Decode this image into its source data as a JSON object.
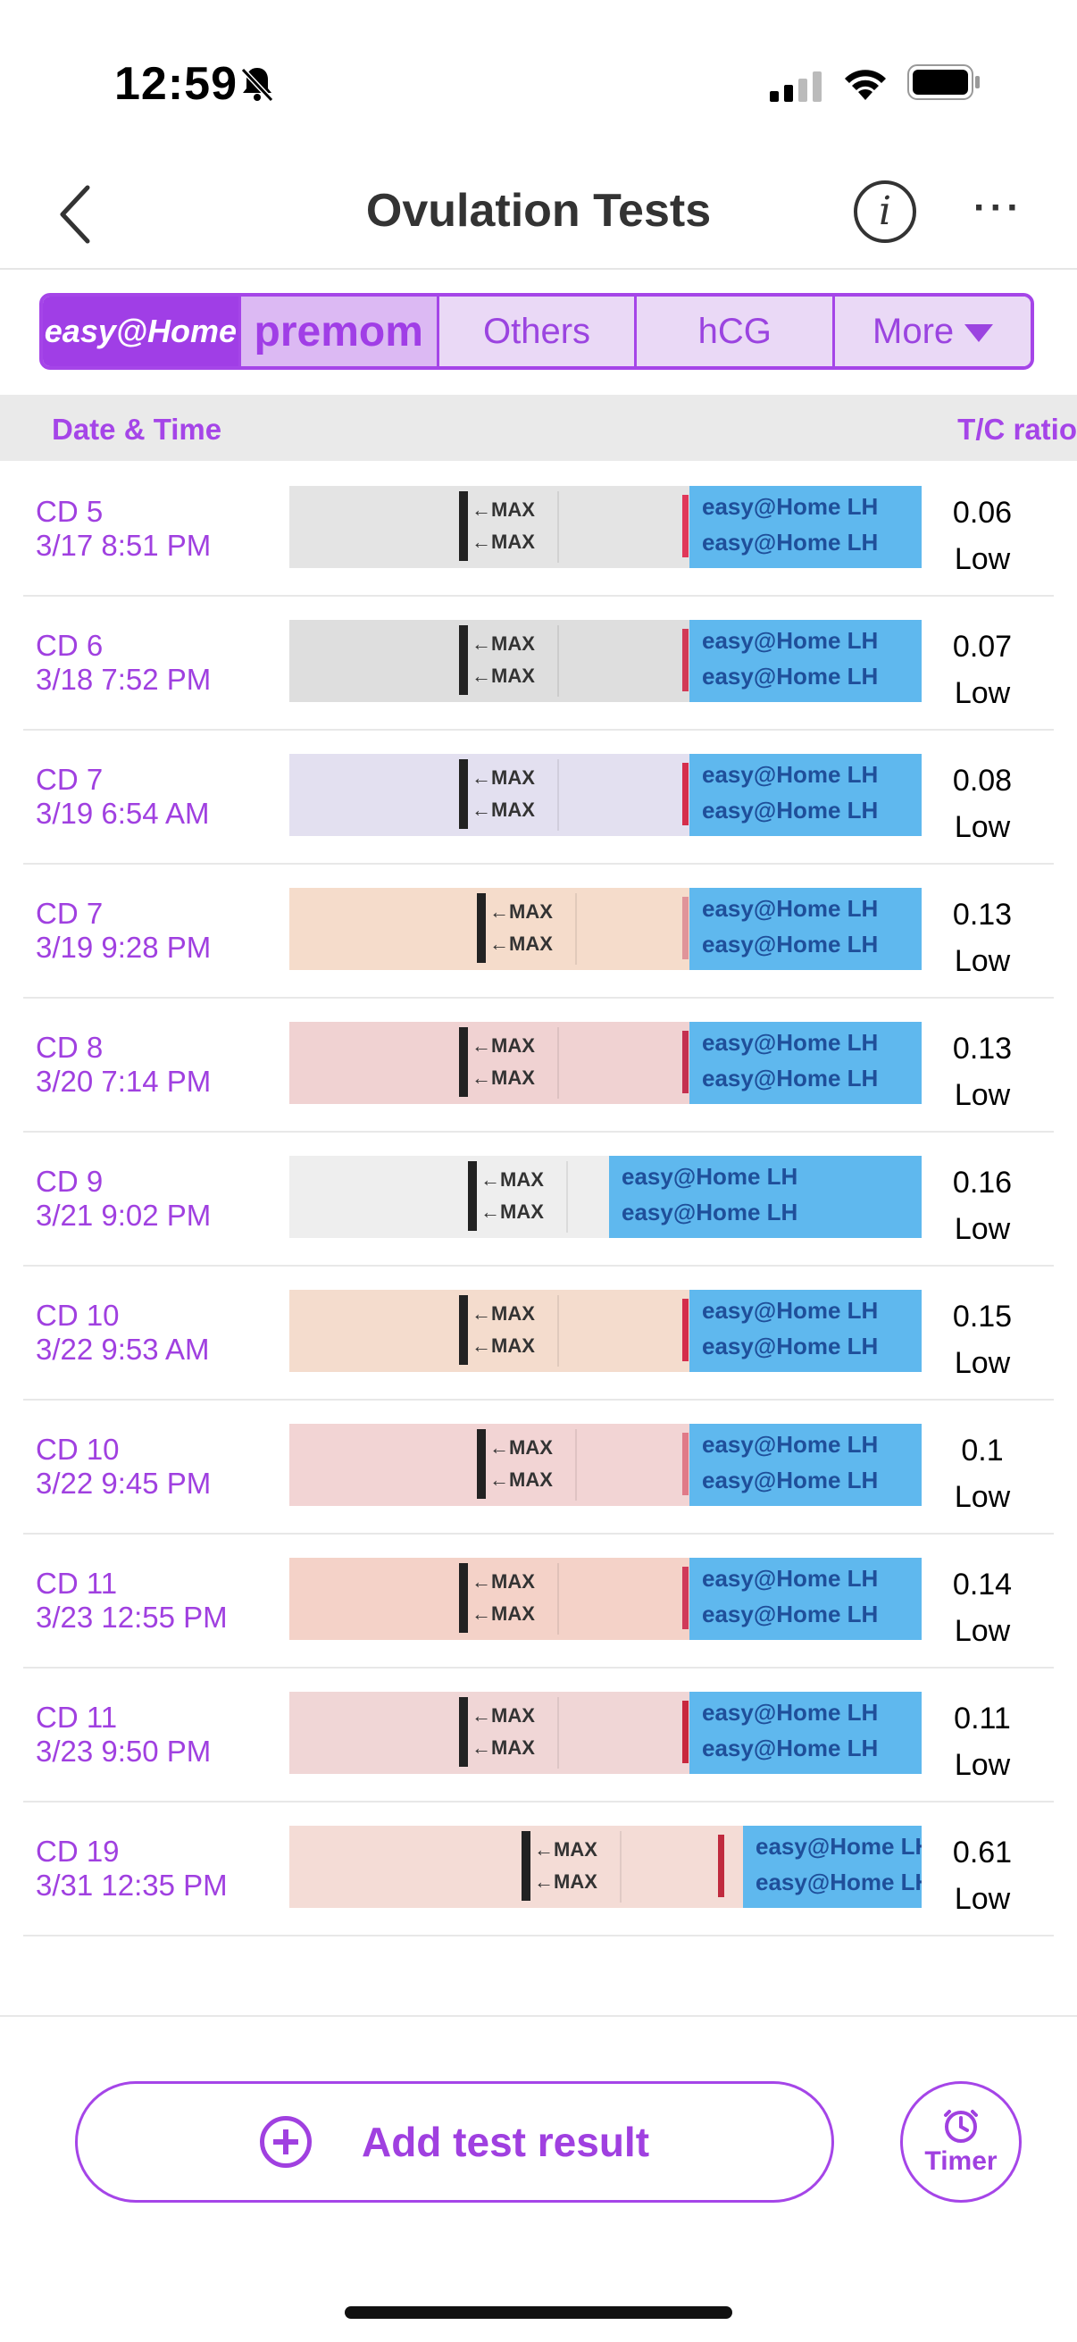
{
  "status_bar": {
    "time": "12:59"
  },
  "nav": {
    "title": "Ovulation Tests"
  },
  "tabs": {
    "brand1": "easy@Home",
    "brand2": "premom",
    "others": "Others",
    "hcg": "hCG",
    "more": "More"
  },
  "table_header": {
    "date_time": "Date & Time",
    "ratio": "T/C ratio"
  },
  "strip_text": {
    "max": "←MAX",
    "cap": "easy@Home LH"
  },
  "rows": [
    {
      "cd": "CD 5",
      "dt": "3/17 8:51 PM",
      "ratio": "0.06",
      "level": "Low",
      "bg": "#e4e4e4",
      "line": "#e0385a"
    },
    {
      "cd": "CD 6",
      "dt": "3/18 7:52 PM",
      "ratio": "0.07",
      "level": "Low",
      "bg": "#dedede",
      "line": "#d23a56"
    },
    {
      "cd": "CD 7",
      "dt": "3/19 6:54 AM",
      "ratio": "0.08",
      "level": "Low",
      "bg": "#e3e0f0",
      "line": "#d52e4c"
    },
    {
      "cd": "CD 7",
      "dt": "3/19 9:28 PM",
      "ratio": "0.13",
      "level": "Low",
      "bg": "#f5dccb",
      "line": "#e0949a"
    },
    {
      "cd": "CD 8",
      "dt": "3/20 7:14 PM",
      "ratio": "0.13",
      "level": "Low",
      "bg": "#f0d2d2",
      "line": "#c43050"
    },
    {
      "cd": "CD 9",
      "dt": "3/21 9:02 PM",
      "ratio": "0.16",
      "level": "Low",
      "bg": "#eeeeee",
      "line": "#d8304c"
    },
    {
      "cd": "CD 10",
      "dt": "3/22 9:53 AM",
      "ratio": "0.15",
      "level": "Low",
      "bg": "#f4dccd",
      "line": "#d42e4c"
    },
    {
      "cd": "CD 10",
      "dt": "3/22 9:45 PM",
      "ratio": "0.1",
      "level": "Low",
      "bg": "#f2d4d4",
      "line": "#e07a88"
    },
    {
      "cd": "CD 11",
      "dt": "3/23 12:55 PM",
      "ratio": "0.14",
      "level": "Low",
      "bg": "#f4d2c8",
      "line": "#d03a5a"
    },
    {
      "cd": "CD 11",
      "dt": "3/23 9:50 PM",
      "ratio": "0.11",
      "level": "Low",
      "bg": "#f0d6d6",
      "line": "#c8283e"
    },
    {
      "cd": "CD 19",
      "dt": "3/31 12:35 PM",
      "ratio": "0.61",
      "level": "Low",
      "bg": "#f4dcd6",
      "line": "#c02a3e"
    }
  ],
  "actions": {
    "add_result": "Add test result",
    "timer": "Timer"
  },
  "colors": {
    "accent": "#a545e8",
    "strip_cap": "#5fb8ee"
  }
}
